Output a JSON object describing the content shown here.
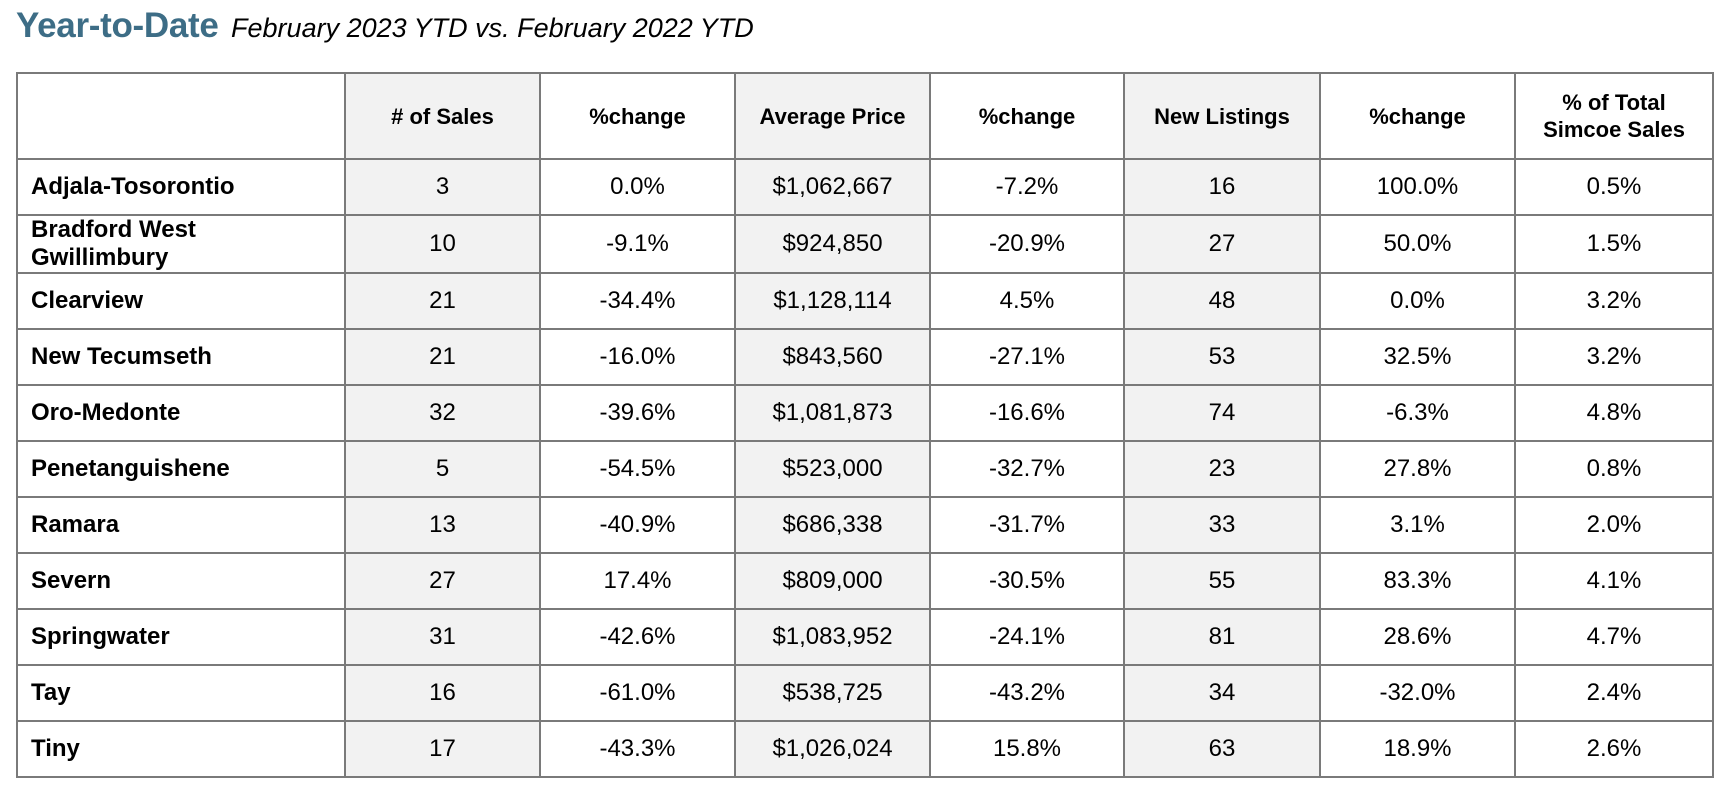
{
  "header": {
    "title": "Year-to-Date",
    "subtitle": "February 2023 YTD vs. February 2022 YTD"
  },
  "table": {
    "columns": [
      "",
      "# of Sales",
      "%change",
      "Average Price",
      "%change",
      "New Listings",
      "%change",
      "% of Total Simcoe Sales"
    ],
    "rows": [
      {
        "region": "Adjala-Tosorontio",
        "sales": "3",
        "sales_change": "0.0%",
        "avg_price": "$1,062,667",
        "price_change": "-7.2%",
        "new_listings": "16",
        "listings_change": "100.0%",
        "pct_total": "0.5%"
      },
      {
        "region": "Bradford West Gwillimbury",
        "sales": "10",
        "sales_change": "-9.1%",
        "avg_price": "$924,850",
        "price_change": "-20.9%",
        "new_listings": "27",
        "listings_change": "50.0%",
        "pct_total": "1.5%"
      },
      {
        "region": "Clearview",
        "sales": "21",
        "sales_change": "-34.4%",
        "avg_price": "$1,128,114",
        "price_change": "4.5%",
        "new_listings": "48",
        "listings_change": "0.0%",
        "pct_total": "3.2%"
      },
      {
        "region": "New Tecumseth",
        "sales": "21",
        "sales_change": "-16.0%",
        "avg_price": "$843,560",
        "price_change": "-27.1%",
        "new_listings": "53",
        "listings_change": "32.5%",
        "pct_total": "3.2%"
      },
      {
        "region": "Oro-Medonte",
        "sales": "32",
        "sales_change": "-39.6%",
        "avg_price": "$1,081,873",
        "price_change": "-16.6%",
        "new_listings": "74",
        "listings_change": "-6.3%",
        "pct_total": "4.8%"
      },
      {
        "region": "Penetanguishene",
        "sales": "5",
        "sales_change": "-54.5%",
        "avg_price": "$523,000",
        "price_change": "-32.7%",
        "new_listings": "23",
        "listings_change": "27.8%",
        "pct_total": "0.8%"
      },
      {
        "region": "Ramara",
        "sales": "13",
        "sales_change": "-40.9%",
        "avg_price": "$686,338",
        "price_change": "-31.7%",
        "new_listings": "33",
        "listings_change": "3.1%",
        "pct_total": "2.0%"
      },
      {
        "region": "Severn",
        "sales": "27",
        "sales_change": "17.4%",
        "avg_price": "$809,000",
        "price_change": "-30.5%",
        "new_listings": "55",
        "listings_change": "83.3%",
        "pct_total": "4.1%"
      },
      {
        "region": "Springwater",
        "sales": "31",
        "sales_change": "-42.6%",
        "avg_price": "$1,083,952",
        "price_change": "-24.1%",
        "new_listings": "81",
        "listings_change": "28.6%",
        "pct_total": "4.7%"
      },
      {
        "region": "Tay",
        "sales": "16",
        "sales_change": "-61.0%",
        "avg_price": "$538,725",
        "price_change": "-43.2%",
        "new_listings": "34",
        "listings_change": "-32.0%",
        "pct_total": "2.4%"
      },
      {
        "region": "Tiny",
        "sales": "17",
        "sales_change": "-43.3%",
        "avg_price": "$1,026,024",
        "price_change": "15.8%",
        "new_listings": "63",
        "listings_change": "18.9%",
        "pct_total": "2.6%"
      }
    ]
  },
  "colors": {
    "title": "#3d6d86",
    "shade": "#f2f2f2",
    "border": "#7a7a7a"
  }
}
